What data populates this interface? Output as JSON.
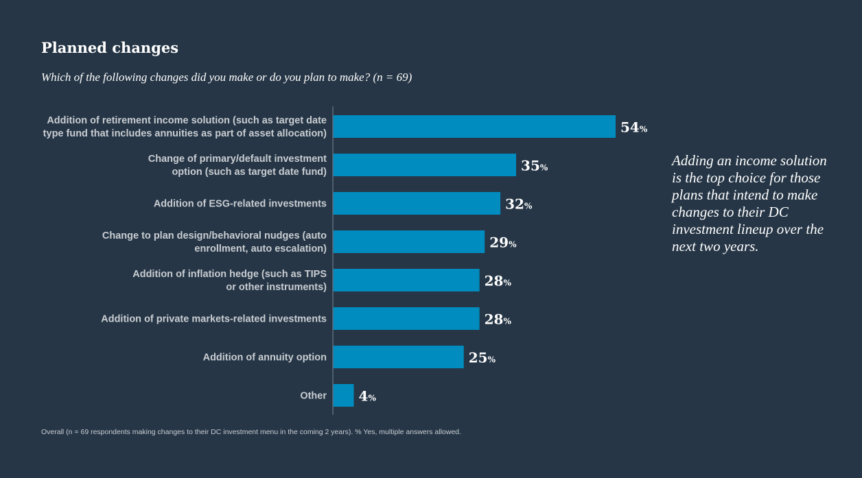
{
  "chart_data": {
    "type": "bar",
    "orientation": "horizontal",
    "title": "Planned changes",
    "subtitle": "Which of the following changes did you make or do you plan to make? (n = 69)",
    "categories": [
      [
        "Addition of retirement income solution (such as target date",
        "type fund that includes annuities as part of asset allocation)"
      ],
      [
        "Change of primary/default investment",
        "option (such as target date fund)"
      ],
      [
        "Addition of ESG-related investments"
      ],
      [
        "Change to plan design/behavioral nudges (auto",
        "enrollment, auto escalation)"
      ],
      [
        "Addition of inflation hedge (such as TIPS",
        "or other instruments)"
      ],
      [
        "Addition of private markets-related investments"
      ],
      [
        "Addition of annuity option"
      ],
      [
        "Other"
      ]
    ],
    "values": [
      54,
      35,
      32,
      29,
      28,
      28,
      25,
      4
    ],
    "value_suffix": "%",
    "xlim": [
      0,
      54
    ],
    "grid": false,
    "bar_color": "#008cbf",
    "axis_color": "#5c6b7a",
    "label_color": "#c9cdd2"
  },
  "annotation": "Adding an income solution is the top choice for those plans that intend to make changes to their DC investment lineup over the next two years.",
  "footnote": "Overall (n = 69 respondents making changes to their DC investment menu in the coming 2 years). % Yes, multiple answers allowed.",
  "colors": {
    "background": "#263646",
    "text": "#ffffff"
  }
}
